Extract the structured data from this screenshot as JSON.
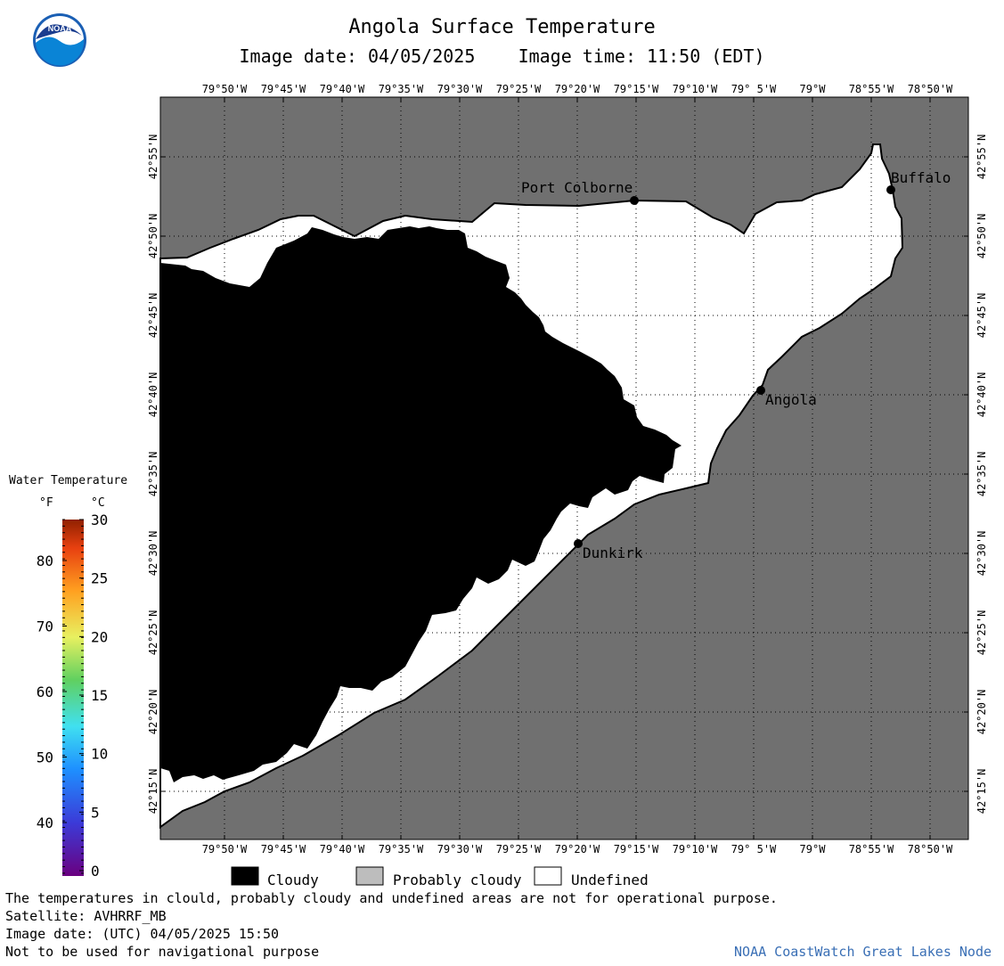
{
  "header": {
    "title": "Angola Surface Temperature",
    "image_date_label": "Image date: 04/05/2025",
    "image_time_label": "Image time: 11:50 (EDT)"
  },
  "logo": {
    "text": "NOAA",
    "icon": "noaa-logo-icon"
  },
  "map": {
    "lon_labels": [
      "79°50'W",
      "79°45'W",
      "79°40'W",
      "79°35'W",
      "79°30'W",
      "79°25'W",
      "79°20'W",
      "79°15'W",
      "79°10'W",
      "79° 5'W",
      "79°W",
      "78°55'W",
      "78°50'W"
    ],
    "lat_labels": [
      "42°55'N",
      "42°50'N",
      "42°45'N",
      "42°40'N",
      "42°35'N",
      "42°30'N",
      "42°25'N",
      "42°20'N",
      "42°15'N"
    ],
    "places": [
      {
        "name": "Port Colborne"
      },
      {
        "name": "Buffalo"
      },
      {
        "name": "Angola"
      },
      {
        "name": "Dunkirk"
      }
    ],
    "colors": {
      "land": "#707070",
      "cloudy": "#000000",
      "undefined": "#ffffff",
      "probably_cloudy": "#bdbdbd"
    }
  },
  "colorbar": {
    "title": "Water Temperature",
    "unit_f": "°F",
    "unit_c": "°C",
    "f_ticks": [
      "80",
      "70",
      "60",
      "50",
      "40"
    ],
    "c_ticks": [
      "30",
      "25",
      "20",
      "15",
      "10",
      "5",
      "0"
    ]
  },
  "legend": {
    "cloudy": "Cloudy",
    "probably_cloudy": "Probably cloudy",
    "undefined": "Undefined"
  },
  "footer": {
    "note": "The temperatures in clould, probably cloudy and undefined areas are not for operational purpose.",
    "satellite": "Satellite: AVHRRF_MB",
    "utc": "Image date: (UTC) 04/05/2025  15:50",
    "nav": "Not to be used for navigational purpose",
    "credit": "NOAA CoastWatch Great Lakes Node"
  }
}
